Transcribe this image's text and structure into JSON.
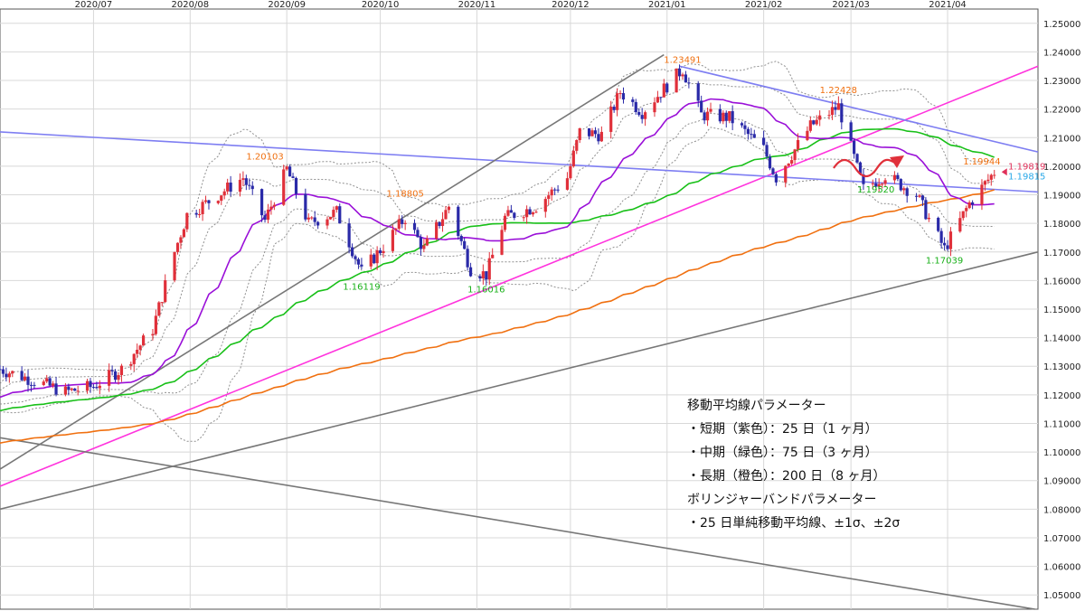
{
  "chart_data": {
    "type": "candlestick",
    "title": "",
    "x_axis": {
      "ticks": [
        "2020/07",
        "2020/08",
        "2020/09",
        "2020/10",
        "2020/11",
        "2020/12",
        "2021/01",
        "2021/02",
        "2021/03",
        "2021/04"
      ],
      "range": [
        "2020-06-01",
        "2021-04-30"
      ]
    },
    "y_axis": {
      "position": "right",
      "range": [
        1.045,
        1.255
      ],
      "ticks": [
        "1.25000",
        "1.24000",
        "1.23000",
        "1.22000",
        "1.21000",
        "1.20000",
        "1.19000",
        "1.18000",
        "1.17000",
        "1.16000",
        "1.15000",
        "1.14000",
        "1.13000",
        "1.12000",
        "1.11000",
        "1.10000",
        "1.09000",
        "1.08000",
        "1.07000",
        "1.06000",
        "1.05000"
      ]
    },
    "grid": true,
    "colors": {
      "up_candle": "#e0303a",
      "down_candle": "#2a2aa8",
      "ma_short": "#9a10d8",
      "ma_mid": "#18c018",
      "ma_long": "#f07010",
      "bollinger": "#909090",
      "trend_magenta": "#ff33dd",
      "trend_blue": "#7e7ef2",
      "trend_gray": "#777777",
      "label_orange": "#f07010",
      "label_green": "#18b018",
      "label_red": "#e0305a",
      "label_cyan": "#28a8e8"
    },
    "price_path": [
      [
        "2020-06-01",
        1.129
      ],
      [
        "2020-06-12",
        1.125
      ],
      [
        "2020-06-22",
        1.121
      ],
      [
        "2020-07-01",
        1.123
      ],
      [
        "2020-07-10",
        1.129
      ],
      [
        "2020-07-20",
        1.143
      ],
      [
        "2020-07-27",
        1.17
      ],
      [
        "2020-07-31",
        1.183
      ],
      [
        "2020-08-06",
        1.187
      ],
      [
        "2020-08-18",
        1.196
      ],
      [
        "2020-08-25",
        1.181
      ],
      [
        "2020-09-01",
        1.199
      ],
      [
        "2020-09-08",
        1.18
      ],
      [
        "2020-09-17",
        1.184
      ],
      [
        "2020-09-25",
        1.163
      ],
      [
        "2020-10-02",
        1.172
      ],
      [
        "2020-10-09",
        1.182
      ],
      [
        "2020-10-15",
        1.171
      ],
      [
        "2020-10-23",
        1.186
      ],
      [
        "2020-10-30",
        1.164
      ],
      [
        "2020-11-04",
        1.162
      ],
      [
        "2020-11-10",
        1.182
      ],
      [
        "2020-11-20",
        1.186
      ],
      [
        "2020-11-30",
        1.196
      ],
      [
        "2020-12-04",
        1.212
      ],
      [
        "2020-12-11",
        1.211
      ],
      [
        "2020-12-17",
        1.226
      ],
      [
        "2020-12-24",
        1.219
      ],
      [
        "2021-01-06",
        1.234
      ],
      [
        "2021-01-12",
        1.218
      ],
      [
        "2021-01-21",
        1.217
      ],
      [
        "2021-02-01",
        1.206
      ],
      [
        "2021-02-05",
        1.196
      ],
      [
        "2021-02-16",
        1.214
      ],
      [
        "2021-02-25",
        1.221
      ],
      [
        "2021-03-05",
        1.192
      ],
      [
        "2021-03-12",
        1.197
      ],
      [
        "2021-03-22",
        1.19
      ],
      [
        "2021-03-31",
        1.171
      ],
      [
        "2021-04-08",
        1.187
      ],
      [
        "2021-04-16",
        1.198
      ]
    ],
    "indicators": [
      {
        "name": "25",
        "color": "#9a10d8"
      },
      {
        "name": "75",
        "color": "#18c018"
      },
      {
        "name": "200",
        "color": "#f07010"
      },
      {
        "name": "±1σ/±2σ",
        "color": "#909090"
      }
    ],
    "annotations": [
      {
        "text": "1.20103",
        "x": "2020-08-25",
        "y": 1.201,
        "color": "#f07010"
      },
      {
        "text": "1.16119",
        "x": "2020-09-25",
        "y": 1.1612,
        "color": "#18b018"
      },
      {
        "text": "1.18805",
        "x": "2020-10-09",
        "y": 1.1881,
        "color": "#f07010"
      },
      {
        "text": "1.16016",
        "x": "2020-11-04",
        "y": 1.1602,
        "color": "#18b018"
      },
      {
        "text": "1.23491",
        "x": "2021-01-06",
        "y": 1.2349,
        "color": "#f07010"
      },
      {
        "text": "1.22428",
        "x": "2021-02-25",
        "y": 1.2243,
        "color": "#f07010"
      },
      {
        "text": "1.19520",
        "x": "2021-03-09",
        "y": 1.1952,
        "color": "#18b018"
      },
      {
        "text": "1.17039",
        "x": "2021-03-31",
        "y": 1.1704,
        "color": "#18b018"
      },
      {
        "text": "1.19944",
        "x": "2021-04-12",
        "y": 1.1994,
        "color": "#f07010"
      },
      {
        "text": "1.19819",
        "x": "2021-04-16",
        "y": 1.1982,
        "color": "#e0305a"
      },
      {
        "text": "1.19815",
        "x": "2021-04-16",
        "y": 1.1982,
        "color": "#28a8e8"
      }
    ],
    "trendlines": [
      {
        "color": "#ff33dd",
        "from": [
          "2020-06-01",
          1.088
        ],
        "to": [
          "2021-04-30",
          1.235
        ]
      },
      {
        "color": "#7e7ef2",
        "from": [
          "2020-06-01",
          1.212
        ],
        "to": [
          "2021-05-15",
          1.191
        ]
      },
      {
        "color": "#7e7ef2",
        "from": [
          "2021-01-05",
          1.235
        ],
        "to": [
          "2021-05-15",
          1.205
        ]
      },
      {
        "color": "#777777",
        "from": [
          "2020-06-01",
          1.094
        ],
        "to": [
          "2020-12-31",
          1.239
        ]
      },
      {
        "color": "#777777",
        "from": [
          "2020-06-01",
          1.08
        ],
        "to": [
          "2021-05-15",
          1.17
        ]
      },
      {
        "color": "#777777",
        "from": [
          "2020-06-01",
          1.105
        ],
        "to": [
          "2021-04-29",
          1.045
        ]
      }
    ],
    "legend_position": "bottom-right"
  },
  "legend": {
    "lines": [
      "移動平均線パラメーター",
      "・短期（紫色）：25 日（1 ヶ月）",
      "・中期（緑色）：75 日（3 ヶ月）",
      "・長期（橙色）：200 日（8 ヶ月）",
      "ボリンジャーバンドパラメーター",
      "・25 日単純移動平均線、±1σ、±2σ"
    ]
  }
}
